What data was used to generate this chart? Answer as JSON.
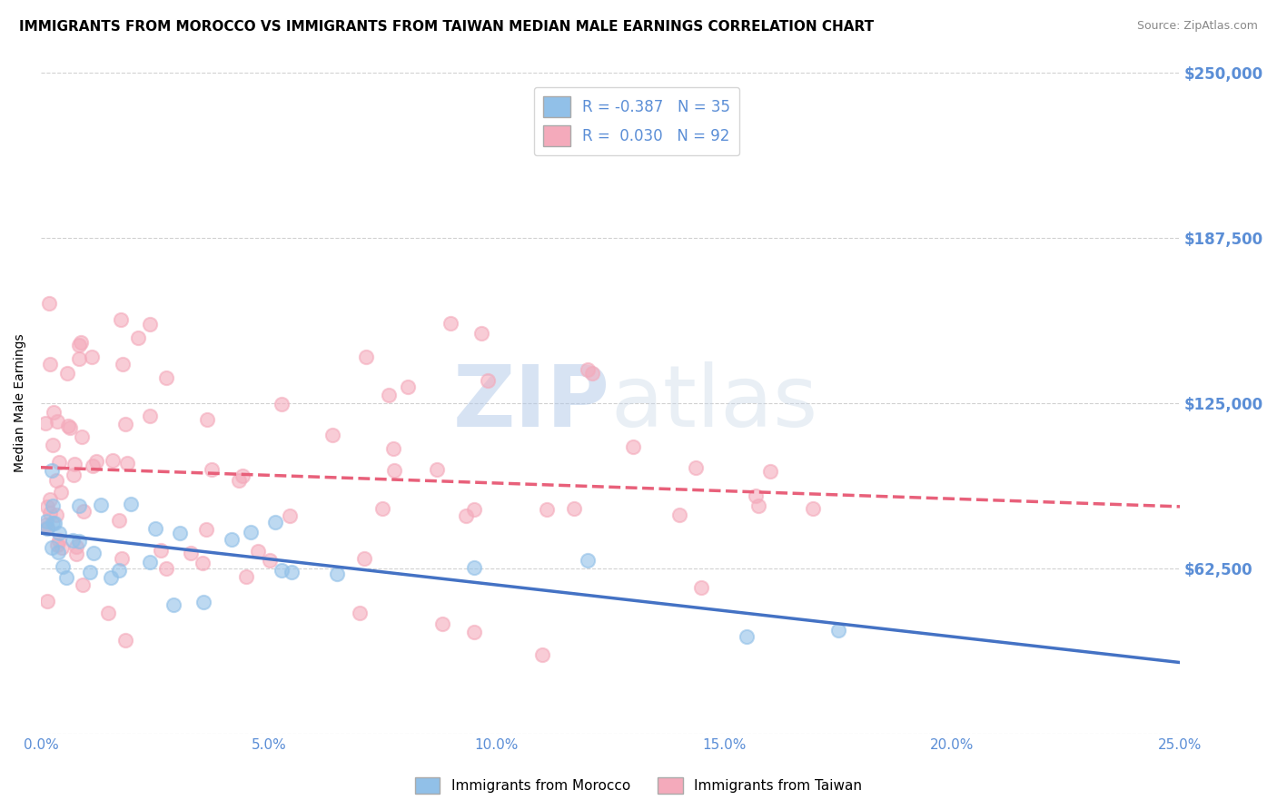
{
  "title": "IMMIGRANTS FROM MOROCCO VS IMMIGRANTS FROM TAIWAN MEDIAN MALE EARNINGS CORRELATION CHART",
  "source": "Source: ZipAtlas.com",
  "ylabel": "Median Male Earnings",
  "xlim": [
    0.0,
    0.25
  ],
  "ylim": [
    0,
    250000
  ],
  "yticks": [
    0,
    62500,
    125000,
    187500,
    250000
  ],
  "ytick_labels": [
    "",
    "$62,500",
    "$125,000",
    "$187,500",
    "$250,000"
  ],
  "xticks": [
    0.0,
    0.05,
    0.1,
    0.15,
    0.2,
    0.25
  ],
  "xtick_labels": [
    "0.0%",
    "5.0%",
    "10.0%",
    "15.0%",
    "20.0%",
    "25.0%"
  ],
  "morocco_R": -0.387,
  "morocco_N": 35,
  "taiwan_R": 0.03,
  "taiwan_N": 92,
  "morocco_color": "#91C0E8",
  "taiwan_color": "#F4AABB",
  "morocco_line_color": "#4472C4",
  "taiwan_line_color": "#E8607A",
  "background_color": "#FFFFFF",
  "grid_color": "#CCCCCC",
  "watermark_zip": "ZIP",
  "watermark_atlas": "atlas",
  "title_fontsize": 11,
  "tick_label_color": "#5B8ED6",
  "legend_text_color": "#5B8ED6",
  "bottom_legend_morocco": "Immigrants from Morocco",
  "bottom_legend_taiwan": "Immigrants from Taiwan"
}
